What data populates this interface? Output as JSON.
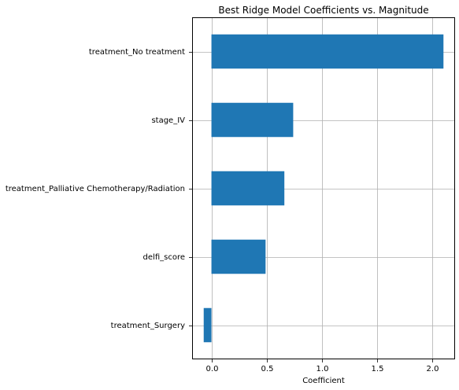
{
  "chart_data": {
    "type": "bar",
    "orientation": "horizontal",
    "title": "Best Ridge Model Coefficients vs. Magnitude",
    "xlabel": "Coefficient",
    "ylabel": "",
    "categories": [
      "treatment_No treatment",
      "stage_IV",
      "treatment_Palliative Chemotherapy/Radiation",
      "delfi_score",
      "treatment_Surgery"
    ],
    "values": [
      2.1,
      0.74,
      0.66,
      0.49,
      -0.07
    ],
    "xlim": [
      -0.175,
      2.205
    ],
    "xticks": [
      0.0,
      0.5,
      1.0,
      1.5,
      2.0
    ],
    "xtick_labels": [
      "0.0",
      "0.5",
      "1.0",
      "1.5",
      "2.0"
    ],
    "grid": true,
    "bar_color": "#1f77b4"
  }
}
